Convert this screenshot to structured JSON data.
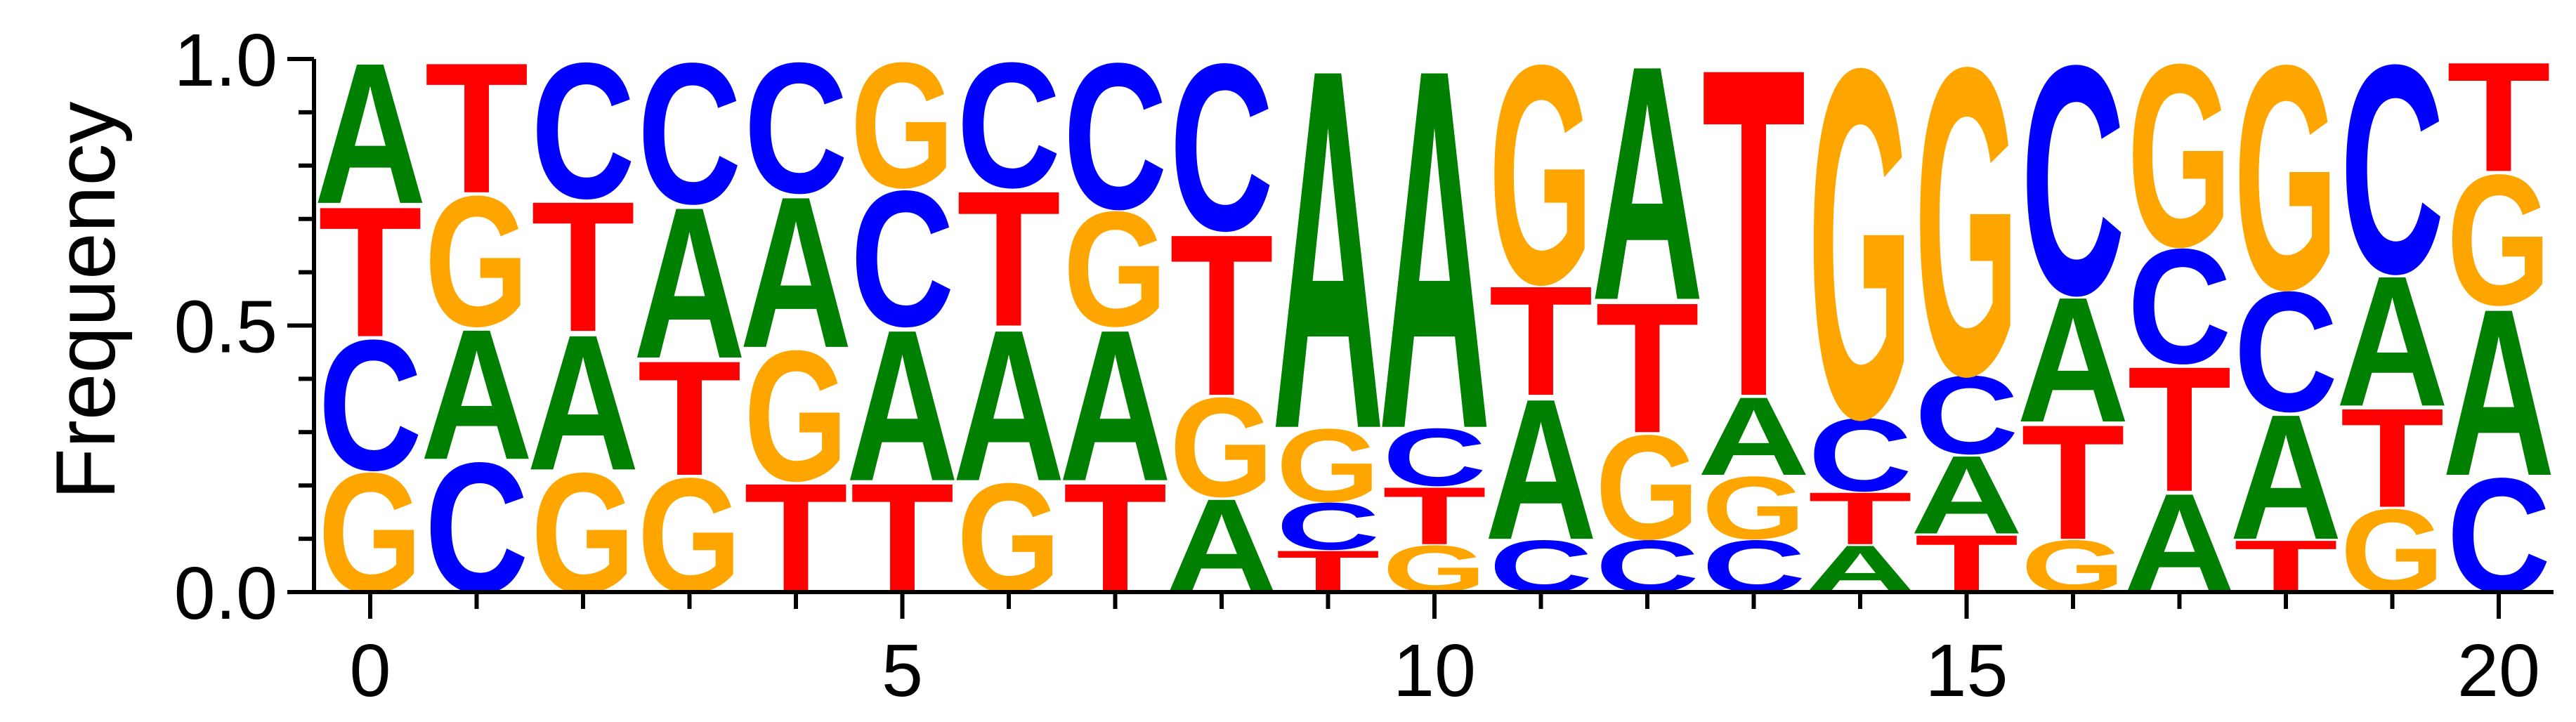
{
  "chart_data": {
    "type": "sequence-logo",
    "ylabel": "Frequency",
    "xlabel": "",
    "ylim": [
      0,
      1
    ],
    "xlim": [
      -0.5,
      20.5
    ],
    "y_ticks": [
      {
        "value": 0.0,
        "label": "0.0"
      },
      {
        "value": 0.5,
        "label": "0.5"
      },
      {
        "value": 1.0,
        "label": "1.0"
      }
    ],
    "x_ticks": [
      {
        "value": 0,
        "label": "0"
      },
      {
        "value": 5,
        "label": "5"
      },
      {
        "value": 10,
        "label": "10"
      },
      {
        "value": 15,
        "label": "15"
      },
      {
        "value": 20,
        "label": "20"
      }
    ],
    "colors": {
      "A": "#008000",
      "C": "#0000ff",
      "G": "#ffa500",
      "T": "#ff0000"
    },
    "positions": [
      {
        "pos": 0,
        "stack": [
          [
            "G",
            0.23
          ],
          [
            "C",
            0.25
          ],
          [
            "T",
            0.25
          ],
          [
            "A",
            0.27
          ]
        ]
      },
      {
        "pos": 1,
        "stack": [
          [
            "C",
            0.25
          ],
          [
            "A",
            0.25
          ],
          [
            "G",
            0.25
          ],
          [
            "T",
            0.25
          ]
        ]
      },
      {
        "pos": 2,
        "stack": [
          [
            "G",
            0.23
          ],
          [
            "A",
            0.26
          ],
          [
            "T",
            0.25
          ],
          [
            "C",
            0.26
          ]
        ]
      },
      {
        "pos": 3,
        "stack": [
          [
            "G",
            0.22
          ],
          [
            "T",
            0.22
          ],
          [
            "A",
            0.29
          ],
          [
            "C",
            0.27
          ]
        ]
      },
      {
        "pos": 4,
        "stack": [
          [
            "T",
            0.21
          ],
          [
            "G",
            0.25
          ],
          [
            "A",
            0.29
          ],
          [
            "C",
            0.25
          ]
        ]
      },
      {
        "pos": 5,
        "stack": [
          [
            "T",
            0.21
          ],
          [
            "A",
            0.29
          ],
          [
            "C",
            0.26
          ],
          [
            "G",
            0.24
          ]
        ]
      },
      {
        "pos": 6,
        "stack": [
          [
            "G",
            0.21
          ],
          [
            "A",
            0.29
          ],
          [
            "T",
            0.26
          ],
          [
            "C",
            0.24
          ]
        ]
      },
      {
        "pos": 7,
        "stack": [
          [
            "T",
            0.21
          ],
          [
            "A",
            0.29
          ],
          [
            "G",
            0.22
          ],
          [
            "C",
            0.28
          ]
        ]
      },
      {
        "pos": 8,
        "stack": [
          [
            "A",
            0.18
          ],
          [
            "G",
            0.19
          ],
          [
            "T",
            0.31
          ],
          [
            "C",
            0.32
          ]
        ]
      },
      {
        "pos": 9,
        "stack": [
          [
            "T",
            0.08
          ],
          [
            "C",
            0.09
          ],
          [
            "G",
            0.14
          ],
          [
            "A",
            0.69
          ]
        ]
      },
      {
        "pos": 10,
        "stack": [
          [
            "G",
            0.09
          ],
          [
            "T",
            0.11
          ],
          [
            "C",
            0.11
          ],
          [
            "A",
            0.69
          ]
        ]
      },
      {
        "pos": 11,
        "stack": [
          [
            "C",
            0.1
          ],
          [
            "A",
            0.27
          ],
          [
            "T",
            0.21
          ],
          [
            "G",
            0.42
          ]
        ]
      },
      {
        "pos": 12,
        "stack": [
          [
            "C",
            0.1
          ],
          [
            "G",
            0.2
          ],
          [
            "T",
            0.25
          ],
          [
            "A",
            0.45
          ]
        ]
      },
      {
        "pos": 13,
        "stack": [
          [
            "C",
            0.1
          ],
          [
            "G",
            0.12
          ],
          [
            "A",
            0.15
          ],
          [
            "T",
            0.63
          ]
        ]
      },
      {
        "pos": 14,
        "stack": [
          [
            "A",
            0.09
          ],
          [
            "T",
            0.1
          ],
          [
            "C",
            0.14
          ],
          [
            "G",
            0.67
          ]
        ]
      },
      {
        "pos": 15,
        "stack": [
          [
            "T",
            0.11
          ],
          [
            "A",
            0.15
          ],
          [
            "C",
            0.15
          ],
          [
            "G",
            0.59
          ]
        ]
      },
      {
        "pos": 16,
        "stack": [
          [
            "G",
            0.1
          ],
          [
            "T",
            0.22
          ],
          [
            "A",
            0.24
          ],
          [
            "C",
            0.44
          ]
        ]
      },
      {
        "pos": 17,
        "stack": [
          [
            "A",
            0.19
          ],
          [
            "T",
            0.24
          ],
          [
            "C",
            0.22
          ],
          [
            "G",
            0.35
          ]
        ]
      },
      {
        "pos": 18,
        "stack": [
          [
            "T",
            0.1
          ],
          [
            "A",
            0.24
          ],
          [
            "C",
            0.23
          ],
          [
            "G",
            0.43
          ]
        ]
      },
      {
        "pos": 19,
        "stack": [
          [
            "G",
            0.16
          ],
          [
            "T",
            0.19
          ],
          [
            "A",
            0.25
          ],
          [
            "C",
            0.4
          ]
        ]
      },
      {
        "pos": 20,
        "stack": [
          [
            "C",
            0.22
          ],
          [
            "A",
            0.32
          ],
          [
            "G",
            0.25
          ],
          [
            "T",
            0.21
          ]
        ]
      }
    ]
  }
}
